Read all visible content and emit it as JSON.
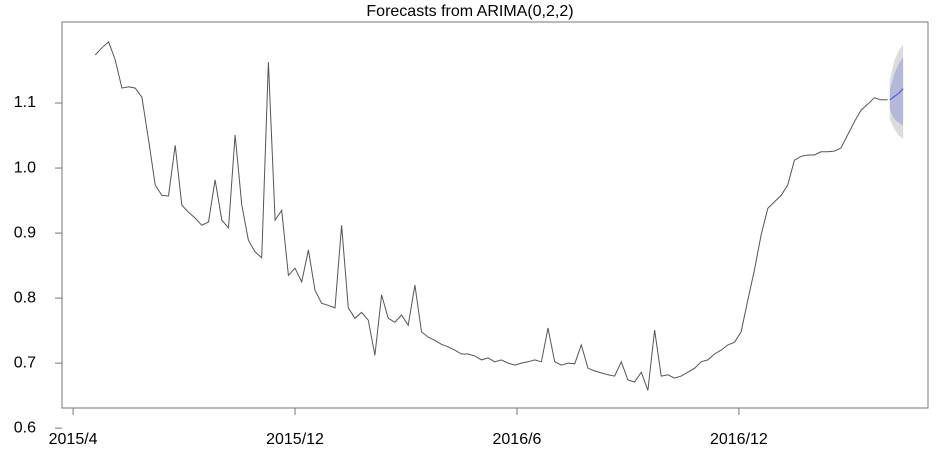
{
  "chart_data": {
    "type": "line",
    "title": "Forecasts from ARIMA(0,2,2)",
    "x": [
      2015.3,
      2015.315,
      2015.33,
      2015.345,
      2015.36,
      2015.375,
      2015.39,
      2015.405,
      2015.42,
      2015.435,
      2015.45,
      2015.465,
      2015.48,
      2015.495,
      2015.51,
      2015.525,
      2015.54,
      2015.555,
      2015.57,
      2015.585,
      2015.6,
      2015.615,
      2015.63,
      2015.645,
      2015.66,
      2015.675,
      2015.69,
      2015.705,
      2015.72,
      2015.735,
      2015.75,
      2015.765,
      2015.78,
      2015.795,
      2015.81,
      2015.825,
      2015.84,
      2015.855,
      2015.87,
      2015.885,
      2015.9,
      2015.915,
      2015.93,
      2015.945,
      2015.96,
      2015.975,
      2015.99,
      2016.005,
      2016.02,
      2016.035,
      2016.05,
      2016.065,
      2016.08,
      2016.095,
      2016.11,
      2016.125,
      2016.14,
      2016.155,
      2016.17,
      2016.185,
      2016.2,
      2016.215,
      2016.23,
      2016.245,
      2016.26,
      2016.275,
      2016.29,
      2016.305,
      2016.32,
      2016.335,
      2016.35,
      2016.365,
      2016.38,
      2016.395,
      2016.41,
      2016.425,
      2016.44,
      2016.455,
      2016.47,
      2016.485,
      2016.5,
      2016.515,
      2016.53,
      2016.545,
      2016.56,
      2016.575,
      2016.59,
      2016.605,
      2016.62,
      2016.635,
      2016.65,
      2016.665,
      2016.68,
      2016.695,
      2016.71,
      2016.725,
      2016.74,
      2016.755,
      2016.77,
      2016.785,
      2016.8,
      2016.815,
      2016.83,
      2016.845,
      2016.86,
      2016.875,
      2016.89,
      2016.905,
      2016.92,
      2016.935,
      2016.95,
      2016.965,
      2016.98,
      2016.995,
      2017.01,
      2017.025,
      2017.04,
      2017.055,
      2017.07,
      2017.085
    ],
    "values": [
      1.174,
      1.185,
      1.194,
      1.166,
      1.123,
      1.125,
      1.123,
      1.109,
      1.043,
      0.974,
      0.958,
      0.957,
      1.035,
      0.943,
      0.932,
      0.923,
      0.912,
      0.917,
      0.982,
      0.92,
      0.908,
      1.051,
      0.943,
      0.889,
      0.871,
      0.862,
      1.163,
      0.92,
      0.935,
      0.835,
      0.846,
      0.825,
      0.874,
      0.812,
      0.792,
      0.789,
      0.785,
      0.912,
      0.785,
      0.769,
      0.778,
      0.766,
      0.712,
      0.805,
      0.769,
      0.763,
      0.774,
      0.758,
      0.82,
      0.748,
      0.74,
      0.735,
      0.729,
      0.725,
      0.72,
      0.714,
      0.714,
      0.711,
      0.705,
      0.708,
      0.702,
      0.705,
      0.7,
      0.697,
      0.7,
      0.702,
      0.705,
      0.702,
      0.754,
      0.702,
      0.697,
      0.7,
      0.699,
      0.728,
      0.692,
      0.688,
      0.685,
      0.682,
      0.68,
      0.702,
      0.674,
      0.671,
      0.686,
      0.658,
      0.751,
      0.68,
      0.682,
      0.677,
      0.68,
      0.686,
      0.692,
      0.702,
      0.705,
      0.714,
      0.72,
      0.728,
      0.732,
      0.748,
      0.797,
      0.843,
      0.897,
      0.938,
      0.948,
      0.958,
      0.974,
      1.012,
      1.018,
      1.02,
      1.02,
      1.025,
      1.025,
      1.026,
      1.031,
      1.051,
      1.071,
      1.089,
      1.098,
      1.108,
      1.105,
      1.105
    ],
    "color": "#555555",
    "forecast": {
      "x": [
        2017.09,
        2017.1,
        2017.11,
        2017.12
      ],
      "mean": [
        1.105,
        1.11,
        1.115,
        1.122
      ],
      "lo80": [
        1.09,
        1.075,
        1.07,
        1.065
      ],
      "hi80": [
        1.12,
        1.145,
        1.16,
        1.17
      ],
      "lo95": [
        1.075,
        1.06,
        1.05,
        1.045
      ],
      "hi95": [
        1.135,
        1.165,
        1.18,
        1.19
      ],
      "color": "#4b5fd6",
      "color80": "#b4b9da",
      "color95": "#dcdcdc"
    },
    "xlim": [
      2015.225,
      2017.176
    ],
    "xticks": [
      {
        "value": 2015.25,
        "label": "2015/4"
      },
      {
        "value": 2015.75,
        "label": "2015/12"
      },
      {
        "value": 2016.25,
        "label": "2016/6"
      },
      {
        "value": 2016.75,
        "label": "2016/12"
      }
    ],
    "ylim": [
      0.631,
      1.2246
    ],
    "yticks": [
      0.6,
      0.7,
      0.8,
      0.9,
      {
        "value": 1,
        "label": "1.0"
      },
      1.1
    ],
    "grid": false
  }
}
